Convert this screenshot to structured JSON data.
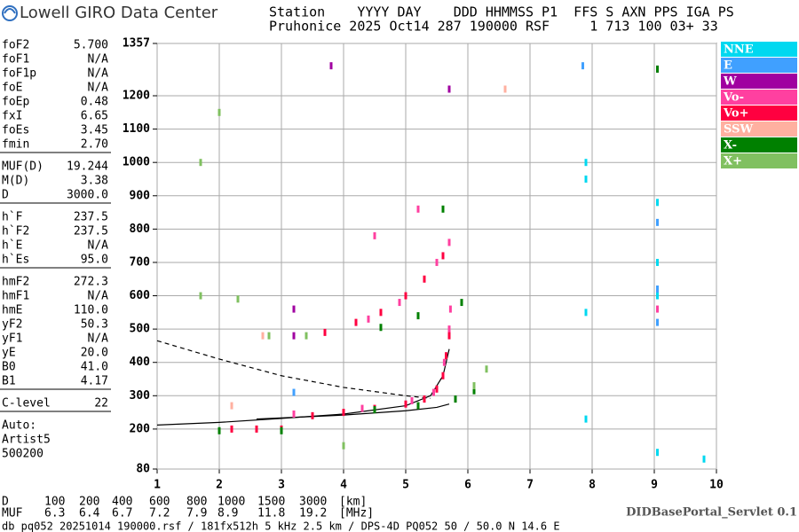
{
  "header": {
    "title": "Lowell GIRO Data Center",
    "lines": [
      "Station    YYYY DAY    DDD HHMMSS P1  FFS S AXN PPS IGA PS",
      "Pruhonice 2025 Oct14 287 190000 RSF     1 713 100 03+ 33"
    ]
  },
  "parameters": [
    [
      [
        "foF2",
        "5.700"
      ],
      [
        "foF1",
        "N/A"
      ],
      [
        "foF1p",
        "N/A"
      ],
      [
        "foE",
        "N/A"
      ],
      [
        "foEp",
        "0.48"
      ],
      [
        "fxI",
        "6.65"
      ],
      [
        "foEs",
        "3.45"
      ],
      [
        "fmin",
        "2.70"
      ]
    ],
    [
      [
        "MUF(D)",
        "19.244"
      ],
      [
        "M(D)",
        "3.38"
      ],
      [
        "D",
        "3000.0"
      ]
    ],
    [
      [
        "h`F",
        "237.5"
      ],
      [
        "h`F2",
        "237.5"
      ],
      [
        "h`E",
        "N/A"
      ],
      [
        "h`Es",
        "95.0"
      ]
    ],
    [
      [
        "hmF2",
        "272.3"
      ],
      [
        "hmF1",
        "N/A"
      ],
      [
        "hmE",
        "110.0"
      ],
      [
        "yF2",
        "50.3"
      ],
      [
        "yF1",
        "N/A"
      ],
      [
        "yE",
        "20.0"
      ],
      [
        "B0",
        "41.0"
      ],
      [
        "B1",
        "4.17"
      ]
    ],
    [
      [
        "C-level",
        "22"
      ]
    ]
  ],
  "auto": [
    "Auto:",
    "Artist5",
    "500200"
  ],
  "chart_data": {
    "type": "scatter",
    "xlim": [
      1,
      10
    ],
    "xticks": [
      1,
      2,
      3,
      4,
      5,
      6,
      7,
      8,
      9,
      10
    ],
    "ylim": [
      80,
      1357
    ],
    "yticks": [
      80,
      200,
      300,
      400,
      500,
      600,
      700,
      800,
      900,
      1000,
      1100,
      1200,
      1357
    ],
    "grid": true,
    "series": [
      {
        "name": "NNE",
        "color": "#00d8f0",
        "x": [
          7.9,
          7.9,
          7.9,
          7.9,
          9.05,
          9.05,
          9.05,
          9.8,
          9.05
        ],
        "values": [
          1000,
          950,
          550,
          230,
          700,
          880,
          600,
          110,
          130
        ]
      },
      {
        "name": "E",
        "color": "#40a0ff",
        "x": [
          9.05,
          9.05,
          9.05,
          3.2,
          7.85
        ],
        "values": [
          820,
          620,
          520,
          310,
          1290
        ]
      },
      {
        "name": "W",
        "color": "#a000a0",
        "x": [
          3.2,
          3.8,
          5.7,
          9.05,
          3.2
        ],
        "values": [
          560,
          1290,
          1220,
          1280,
          480
        ]
      },
      {
        "name": "Vo-",
        "color": "#ff40a0",
        "x": [
          3.2,
          4.3,
          5.1,
          5.45,
          5.62,
          5.7,
          5.72,
          4.4,
          4.9,
          5.5,
          5.7,
          4.5,
          5.2,
          9.05
        ],
        "values": [
          245,
          262,
          285,
          310,
          400,
          500,
          560,
          530,
          580,
          700,
          760,
          780,
          860,
          560
        ]
      },
      {
        "name": "Vo+",
        "color": "#ff0040",
        "x": [
          2.2,
          2.6,
          3.0,
          3.5,
          4.0,
          4.5,
          5.0,
          5.3,
          5.5,
          5.6,
          5.65,
          5.7,
          4.2,
          4.6,
          5.0,
          5.3,
          5.6,
          3.7
        ],
        "values": [
          200,
          200,
          200,
          240,
          250,
          262,
          275,
          290,
          320,
          360,
          420,
          480,
          520,
          550,
          600,
          650,
          720,
          490
        ]
      },
      {
        "name": "SSW",
        "color": "#ffb0a0",
        "x": [
          2.7,
          6.6,
          2.2
        ],
        "values": [
          480,
          1220,
          270
        ]
      },
      {
        "name": "X-",
        "color": "#008000",
        "x": [
          2.0,
          3.0,
          4.5,
          5.2,
          5.8,
          6.1,
          4.6,
          5.2,
          5.9,
          5.6,
          9.05
        ],
        "values": [
          195,
          195,
          258,
          270,
          290,
          315,
          505,
          540,
          580,
          860,
          1280
        ]
      },
      {
        "name": "X+",
        "color": "#80c060",
        "x": [
          2.8,
          3.4,
          6.1,
          6.3,
          2.0,
          1.7,
          1.7,
          2.3,
          4.0
        ],
        "values": [
          480,
          480,
          330,
          380,
          1150,
          1000,
          600,
          590,
          150
        ]
      }
    ],
    "curves": [
      {
        "dashed": false,
        "x": [
          1.0,
          2.0,
          3.0,
          4.0,
          5.0,
          5.4,
          5.6,
          5.7
        ],
        "values": [
          212,
          220,
          232,
          245,
          270,
          300,
          360,
          440
        ]
      },
      {
        "dashed": false,
        "x": [
          2.6,
          4.0,
          5.0,
          5.5,
          5.7
        ],
        "values": [
          230,
          242,
          255,
          265,
          275
        ]
      },
      {
        "dashed": true,
        "x": [
          1.0,
          2.0,
          3.0,
          4.0,
          5.0,
          5.4
        ],
        "values": [
          465,
          410,
          360,
          325,
          300,
          292
        ]
      }
    ]
  },
  "footer": {
    "d_row": [
      "D",
      "100",
      "200",
      "400",
      "600",
      "800",
      "1000",
      "1500",
      "3000",
      "[km]"
    ],
    "muf_row": [
      "MUF",
      "6.3",
      "6.4",
      "6.7",
      "7.2",
      "7.9",
      "8.9",
      "11.8",
      "19.2",
      "[MHz]"
    ],
    "servlet": "DIDBasePortal_Servlet 0.1",
    "info": "db pq052 20251014 190000.rsf / 181fx512h 5 kHz 2.5 km / DPS-4D PQ052 50 / 50.0 N 14.6 E"
  }
}
